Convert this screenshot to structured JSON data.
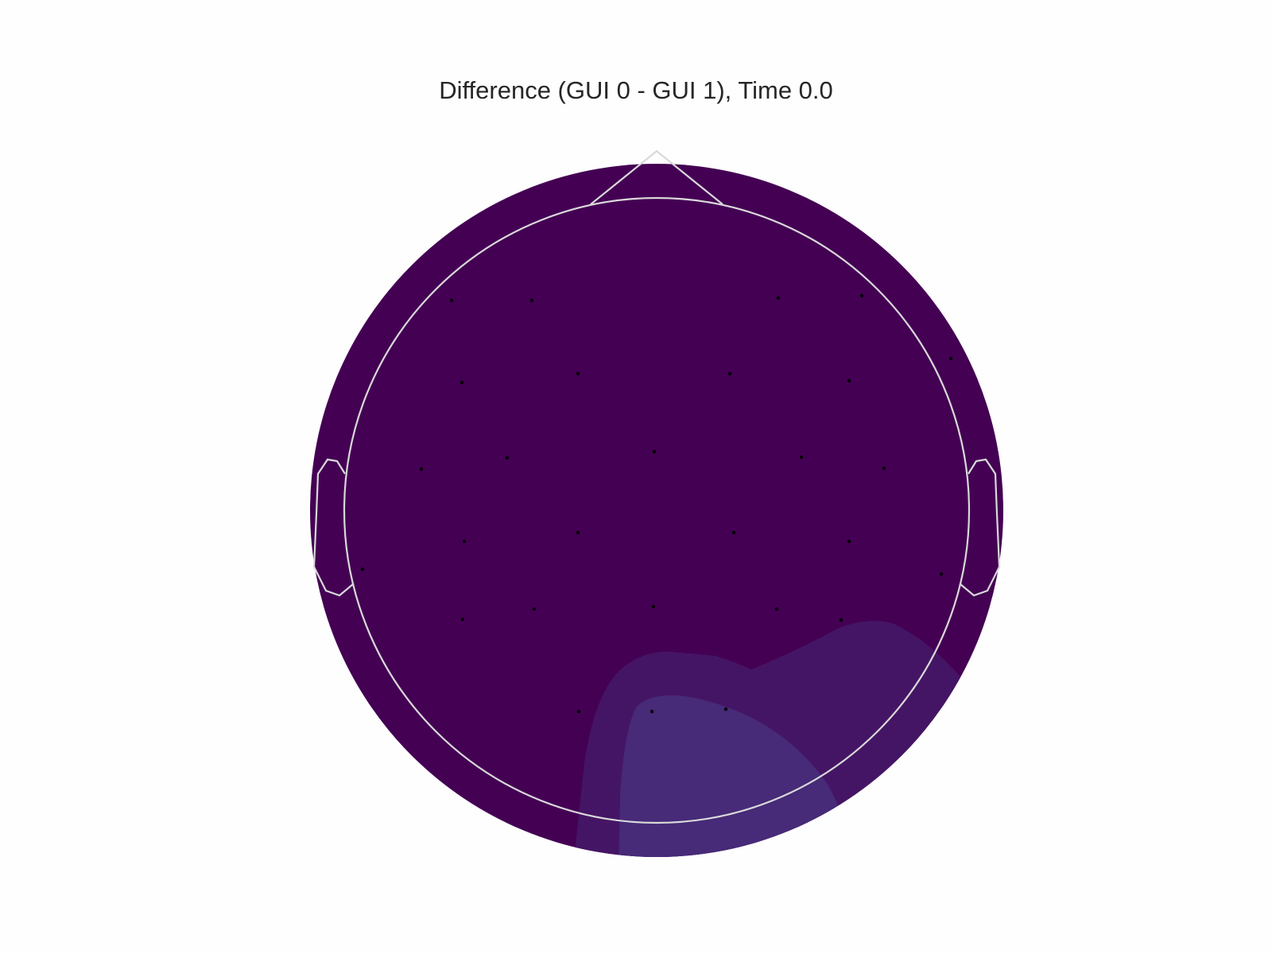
{
  "title": "Difference (GUI 0 - GUI 1), Time 0.0",
  "chart_data": {
    "type": "heatmap",
    "title": "Difference (GUI 0 - GUI 1), Time 0.0",
    "colormap": "viridis",
    "colors": {
      "level_0": "#440154",
      "level_1": "#451565",
      "level_2": "#472a78",
      "head_outline": "#d9d9d9",
      "sensor": "#000000"
    },
    "contour_levels": [
      "level_0",
      "level_1",
      "level_2"
    ],
    "n_sensors": 32,
    "axes_visible": false,
    "colorbar": false
  }
}
